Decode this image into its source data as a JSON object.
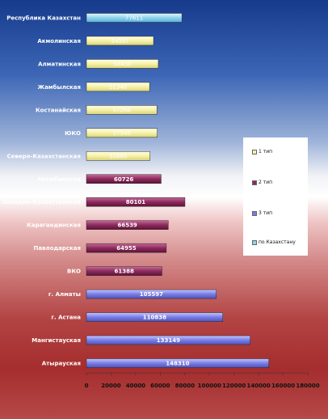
{
  "chart_data": {
    "type": "bar",
    "orientation": "horizontal",
    "categories": [
      "Республика Казахстан",
      "Акмолинская",
      "Алматинская",
      "Жамбылская",
      "Костанайская",
      "ЮКО",
      "Северо-Казахстанская",
      "Актюбинская",
      "Западно-Казахстанская",
      "Карагандинская",
      "Павлодарская",
      "ВКО",
      "г. Алматы",
      "г. Астана",
      "Мангистауская",
      "Атырауская"
    ],
    "values": [
      77611,
      54557,
      58430,
      51340,
      57268,
      57545,
      51680,
      60726,
      80101,
      66539,
      64955,
      61388,
      105597,
      110838,
      133149,
      148310
    ],
    "value_labels": [
      "77611",
      "54557",
      "58430",
      "51340",
      "57268",
      "57545",
      "51680",
      "60726",
      "80101",
      "66539",
      "64955",
      "61388",
      "105597",
      "110838",
      "133149",
      "148310"
    ],
    "groups": [
      0,
      1,
      1,
      1,
      1,
      1,
      1,
      2,
      2,
      2,
      2,
      2,
      3,
      3,
      3,
      3
    ],
    "group_colors": [
      "#8fd3ec",
      "#f6f2a8",
      "#8e2a5e",
      "#7a7ee6"
    ],
    "xlim": [
      0,
      180000
    ],
    "xticks": [
      0,
      20000,
      40000,
      60000,
      80000,
      100000,
      120000,
      140000,
      160000,
      180000
    ],
    "xtick_labels": [
      "0",
      "20000",
      "40000",
      "60000",
      "80000",
      "100000",
      "120000",
      "140000",
      "160000",
      "180000"
    ],
    "legend": {
      "placement": "right",
      "entries": [
        {
          "label": "1 тип",
          "color": "#f6f2a8"
        },
        {
          "label": "2 тип",
          "color": "#8e2a5e"
        },
        {
          "label": "3 тип",
          "color": "#7a7ee6"
        },
        {
          "label": "по Казахстану",
          "color": "#8fd3ec"
        }
      ]
    },
    "grid": false
  }
}
